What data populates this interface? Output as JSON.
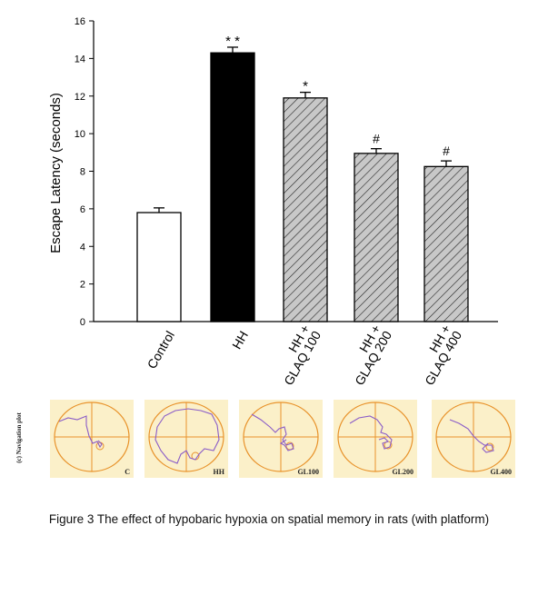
{
  "chart_data": {
    "type": "bar",
    "categories": [
      "Control",
      "HH",
      "HH + GLAQ 100",
      "HH + GLAQ 200",
      "HH + GLAQ 400"
    ],
    "category_lines": [
      [
        "Control"
      ],
      [
        "HH"
      ],
      [
        "HH +",
        "GLAQ 100"
      ],
      [
        "HH +",
        "GLAQ 200"
      ],
      [
        "HH +",
        "GLAQ 400"
      ]
    ],
    "values": [
      5.8,
      14.3,
      11.9,
      8.95,
      8.25
    ],
    "errors": [
      0.25,
      0.3,
      0.3,
      0.25,
      0.3
    ],
    "annotations": [
      "",
      "* *",
      "*",
      "#",
      "#"
    ],
    "fills": [
      "white",
      "black",
      "hatch",
      "hatch",
      "hatch"
    ],
    "ylabel": "Escape Latency (seconds)",
    "ylim": [
      0,
      16
    ],
    "yticks": [
      0,
      2,
      4,
      6,
      8,
      10,
      12,
      14,
      16
    ],
    "grid": false
  },
  "navigation": {
    "side_label": "(c) Navigation plot",
    "panels": [
      {
        "label": "C"
      },
      {
        "label": "HH"
      },
      {
        "label": "GL100"
      },
      {
        "label": "GL200"
      },
      {
        "label": "GL400"
      }
    ]
  },
  "colors": {
    "axis": "#000000",
    "hatch_fill": "#c8c8c8",
    "panel_bg": "#fbf0c9",
    "panel_circle": "#e8922a",
    "panel_path": "#8a5cc8"
  },
  "caption": "Figure 3 The effect of hypobaric hypoxia on spatial memory in rats (with platform)"
}
